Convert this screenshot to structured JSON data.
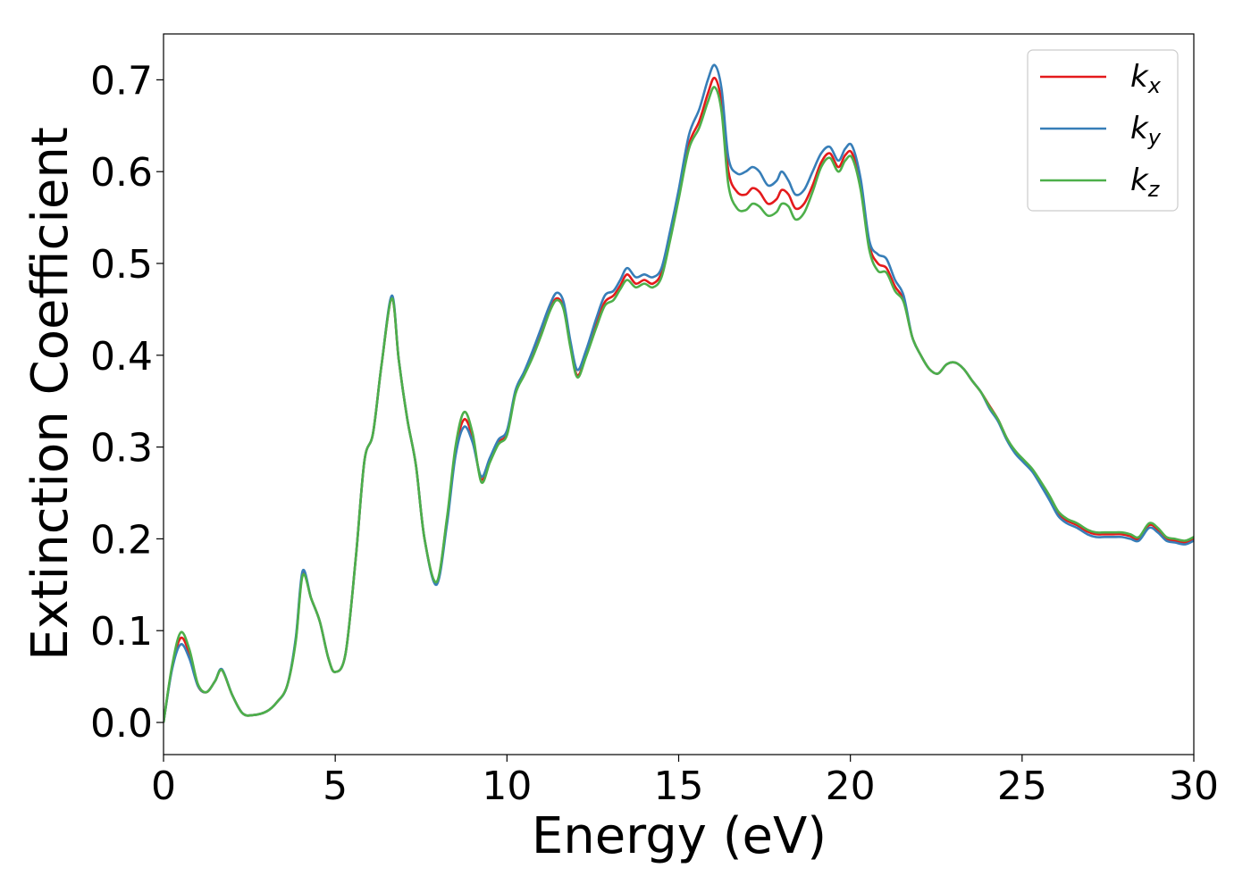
{
  "chart_data": {
    "type": "line",
    "title": "",
    "xlabel": "Energy (eV)",
    "ylabel": "Extinction Coefficient",
    "xlim": [
      0,
      30
    ],
    "ylim": [
      -0.035,
      0.75
    ],
    "xticks": [
      0,
      5,
      10,
      15,
      20,
      25,
      30
    ],
    "xtick_labels": [
      "0",
      "5",
      "10",
      "15",
      "20",
      "25",
      "30"
    ],
    "yticks": [
      0.0,
      0.1,
      0.2,
      0.3,
      0.4,
      0.5,
      0.6,
      0.7
    ],
    "ytick_labels": [
      "0.0",
      "0.1",
      "0.2",
      "0.3",
      "0.4",
      "0.5",
      "0.6",
      "0.7"
    ],
    "grid": false,
    "legend_position": "top-right",
    "x": [
      0,
      0.25,
      0.5,
      0.75,
      1.0,
      1.25,
      1.5,
      1.7,
      2.0,
      2.3,
      2.6,
      3.0,
      3.3,
      3.6,
      3.85,
      4.05,
      4.3,
      4.55,
      4.8,
      5.0,
      5.3,
      5.6,
      5.85,
      6.1,
      6.35,
      6.65,
      6.85,
      7.1,
      7.35,
      7.6,
      7.95,
      8.25,
      8.5,
      8.75,
      9.0,
      9.25,
      9.5,
      9.75,
      10.0,
      10.25,
      10.5,
      10.75,
      11.0,
      11.25,
      11.45,
      11.65,
      11.85,
      12.05,
      12.3,
      12.6,
      12.85,
      13.1,
      13.3,
      13.5,
      13.75,
      14.0,
      14.25,
      14.5,
      14.75,
      15.0,
      15.3,
      15.6,
      15.85,
      16.05,
      16.25,
      16.45,
      16.7,
      16.95,
      17.15,
      17.35,
      17.6,
      17.85,
      18.0,
      18.2,
      18.4,
      18.65,
      18.9,
      19.15,
      19.4,
      19.65,
      19.85,
      20.05,
      20.3,
      20.55,
      20.8,
      21.05,
      21.3,
      21.55,
      21.8,
      22.05,
      22.3,
      22.55,
      22.8,
      23.05,
      23.3,
      23.55,
      23.8,
      24.05,
      24.3,
      24.55,
      24.8,
      25.05,
      25.3,
      25.55,
      25.8,
      26.05,
      26.3,
      26.6,
      26.9,
      27.15,
      27.4,
      27.65,
      27.9,
      28.15,
      28.4,
      28.7,
      28.95,
      29.2,
      29.45,
      29.75,
      30.0
    ],
    "series": [
      {
        "name": "k_x",
        "color": "#e41a1c",
        "values": [
          0.0,
          0.06,
          0.092,
          0.075,
          0.04,
          0.033,
          0.045,
          0.057,
          0.03,
          0.01,
          0.008,
          0.012,
          0.022,
          0.04,
          0.09,
          0.162,
          0.135,
          0.11,
          0.07,
          0.055,
          0.075,
          0.18,
          0.285,
          0.315,
          0.39,
          0.462,
          0.395,
          0.33,
          0.28,
          0.2,
          0.152,
          0.22,
          0.295,
          0.33,
          0.31,
          0.265,
          0.285,
          0.305,
          0.315,
          0.36,
          0.38,
          0.4,
          0.425,
          0.45,
          0.462,
          0.452,
          0.41,
          0.378,
          0.4,
          0.435,
          0.458,
          0.465,
          0.476,
          0.488,
          0.478,
          0.482,
          0.478,
          0.49,
          0.53,
          0.575,
          0.63,
          0.655,
          0.685,
          0.702,
          0.675,
          0.6,
          0.578,
          0.575,
          0.582,
          0.578,
          0.565,
          0.57,
          0.58,
          0.575,
          0.56,
          0.565,
          0.585,
          0.61,
          0.62,
          0.605,
          0.618,
          0.62,
          0.585,
          0.52,
          0.5,
          0.495,
          0.475,
          0.46,
          0.42,
          0.4,
          0.385,
          0.38,
          0.39,
          0.392,
          0.385,
          0.372,
          0.36,
          0.345,
          0.33,
          0.31,
          0.295,
          0.285,
          0.275,
          0.26,
          0.245,
          0.228,
          0.22,
          0.215,
          0.208,
          0.205,
          0.205,
          0.205,
          0.205,
          0.203,
          0.2,
          0.215,
          0.21,
          0.2,
          0.198,
          0.196,
          0.2
        ]
      },
      {
        "name": "k_y",
        "color": "#377eb8",
        "values": [
          0.0,
          0.058,
          0.085,
          0.07,
          0.04,
          0.033,
          0.045,
          0.058,
          0.03,
          0.01,
          0.008,
          0.012,
          0.022,
          0.04,
          0.092,
          0.165,
          0.135,
          0.11,
          0.07,
          0.055,
          0.075,
          0.18,
          0.285,
          0.315,
          0.39,
          0.465,
          0.395,
          0.33,
          0.28,
          0.2,
          0.15,
          0.215,
          0.29,
          0.322,
          0.305,
          0.268,
          0.288,
          0.308,
          0.318,
          0.362,
          0.382,
          0.405,
          0.43,
          0.455,
          0.468,
          0.458,
          0.415,
          0.384,
          0.405,
          0.44,
          0.465,
          0.47,
          0.482,
          0.495,
          0.485,
          0.488,
          0.485,
          0.495,
          0.535,
          0.58,
          0.64,
          0.668,
          0.7,
          0.716,
          0.69,
          0.615,
          0.598,
          0.6,
          0.605,
          0.6,
          0.585,
          0.59,
          0.6,
          0.59,
          0.575,
          0.58,
          0.6,
          0.62,
          0.627,
          0.612,
          0.625,
          0.628,
          0.592,
          0.525,
          0.51,
          0.505,
          0.482,
          0.465,
          0.42,
          0.4,
          0.385,
          0.38,
          0.39,
          0.392,
          0.385,
          0.372,
          0.36,
          0.342,
          0.328,
          0.308,
          0.293,
          0.283,
          0.273,
          0.258,
          0.242,
          0.225,
          0.217,
          0.212,
          0.205,
          0.202,
          0.202,
          0.202,
          0.202,
          0.2,
          0.198,
          0.212,
          0.207,
          0.198,
          0.196,
          0.194,
          0.198
        ]
      },
      {
        "name": "k_z",
        "color": "#4daf4a",
        "values": [
          0.0,
          0.062,
          0.098,
          0.08,
          0.042,
          0.033,
          0.045,
          0.057,
          0.03,
          0.01,
          0.008,
          0.012,
          0.022,
          0.04,
          0.088,
          0.16,
          0.135,
          0.11,
          0.07,
          0.055,
          0.075,
          0.18,
          0.285,
          0.315,
          0.39,
          0.462,
          0.395,
          0.33,
          0.28,
          0.2,
          0.153,
          0.222,
          0.3,
          0.338,
          0.315,
          0.262,
          0.283,
          0.303,
          0.313,
          0.358,
          0.378,
          0.398,
          0.422,
          0.448,
          0.46,
          0.45,
          0.408,
          0.376,
          0.398,
          0.43,
          0.454,
          0.46,
          0.472,
          0.482,
          0.474,
          0.478,
          0.474,
          0.485,
          0.525,
          0.57,
          0.625,
          0.648,
          0.676,
          0.692,
          0.665,
          0.585,
          0.56,
          0.558,
          0.565,
          0.562,
          0.552,
          0.556,
          0.565,
          0.562,
          0.548,
          0.555,
          0.578,
          0.605,
          0.615,
          0.6,
          0.612,
          0.615,
          0.58,
          0.515,
          0.492,
          0.49,
          0.47,
          0.458,
          0.42,
          0.4,
          0.385,
          0.38,
          0.39,
          0.392,
          0.385,
          0.372,
          0.36,
          0.344,
          0.33,
          0.31,
          0.296,
          0.286,
          0.276,
          0.262,
          0.247,
          0.23,
          0.222,
          0.217,
          0.21,
          0.207,
          0.207,
          0.207,
          0.207,
          0.205,
          0.202,
          0.217,
          0.212,
          0.202,
          0.2,
          0.198,
          0.202
        ]
      }
    ]
  },
  "legend": {
    "items": [
      {
        "base": "k",
        "sub": "x"
      },
      {
        "base": "k",
        "sub": "y"
      },
      {
        "base": "k",
        "sub": "z"
      }
    ]
  }
}
